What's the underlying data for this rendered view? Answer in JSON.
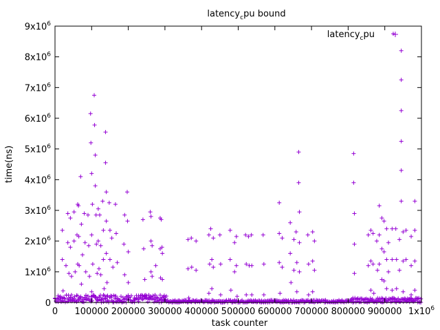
{
  "chart_data": {
    "type": "scatter",
    "title_main": "latency",
    "title_sub": "c",
    "title_tail": "pu bound",
    "xlabel": "task counter",
    "ylabel": "time(ns)",
    "xlim": [
      0,
      1000000
    ],
    "ylim": [
      0,
      9000000
    ],
    "x_ticks": [
      {
        "value": 0,
        "mantissa": "0",
        "exp": ""
      },
      {
        "value": 100000,
        "mantissa": "100000",
        "exp": ""
      },
      {
        "value": 200000,
        "mantissa": "200000",
        "exp": ""
      },
      {
        "value": 300000,
        "mantissa": "300000",
        "exp": ""
      },
      {
        "value": 400000,
        "mantissa": "400000",
        "exp": ""
      },
      {
        "value": 500000,
        "mantissa": "500000",
        "exp": ""
      },
      {
        "value": 600000,
        "mantissa": "600000",
        "exp": ""
      },
      {
        "value": 700000,
        "mantissa": "700000",
        "exp": ""
      },
      {
        "value": 800000,
        "mantissa": "800000",
        "exp": ""
      },
      {
        "value": 900000,
        "mantissa": "900000",
        "exp": ""
      },
      {
        "value": 1000000,
        "mantissa": "1x10",
        "exp": "6"
      }
    ],
    "y_ticks": [
      {
        "value": 0,
        "mantissa": "0",
        "exp": ""
      },
      {
        "value": 1000000,
        "mantissa": "1x10",
        "exp": "6"
      },
      {
        "value": 2000000,
        "mantissa": "2x10",
        "exp": "6"
      },
      {
        "value": 3000000,
        "mantissa": "3x10",
        "exp": "6"
      },
      {
        "value": 4000000,
        "mantissa": "4x10",
        "exp": "6"
      },
      {
        "value": 5000000,
        "mantissa": "5x10",
        "exp": "6"
      },
      {
        "value": 6000000,
        "mantissa": "6x10",
        "exp": "6"
      },
      {
        "value": 7000000,
        "mantissa": "7x10",
        "exp": "6"
      },
      {
        "value": 8000000,
        "mantissa": "8x10",
        "exp": "6"
      },
      {
        "value": 9000000,
        "mantissa": "9x10",
        "exp": "6"
      }
    ],
    "grid": false,
    "legend": {
      "placement": "top-right",
      "label_main": "latency",
      "label_sub": "c",
      "label_tail": "pu"
    },
    "marker": "plus",
    "color": "#9400d3",
    "dense_bands": [
      {
        "x_start": 0,
        "x_end": 305000,
        "y_min": 0,
        "y_max": 250000
      },
      {
        "x_start": 305000,
        "x_end": 810000,
        "y_min": 0,
        "y_max": 80000
      },
      {
        "x_start": 810000,
        "x_end": 1000000,
        "y_min": 0,
        "y_max": 150000
      }
    ],
    "series": [
      {
        "name": "latency_cpu",
        "points": [
          [
            20000,
            2350000
          ],
          [
            20000,
            1400000
          ],
          [
            22000,
            380000
          ],
          [
            30000,
            1200000
          ],
          [
            35000,
            2900000
          ],
          [
            35000,
            1950000
          ],
          [
            38000,
            950000
          ],
          [
            42000,
            2750000
          ],
          [
            42000,
            1800000
          ],
          [
            45000,
            850000
          ],
          [
            52000,
            2950000
          ],
          [
            52000,
            2000000
          ],
          [
            55000,
            1000000
          ],
          [
            62000,
            3200000
          ],
          [
            64000,
            3150000
          ],
          [
            60000,
            2200000
          ],
          [
            65000,
            2150000
          ],
          [
            62000,
            1250000
          ],
          [
            66000,
            1200000
          ],
          [
            70000,
            4100000
          ],
          [
            72000,
            2550000
          ],
          [
            75000,
            1550000
          ],
          [
            72000,
            600000
          ],
          [
            80000,
            2900000
          ],
          [
            82000,
            1950000
          ],
          [
            84000,
            1000000
          ],
          [
            90000,
            2850000
          ],
          [
            92000,
            1850000
          ],
          [
            94000,
            850000
          ],
          [
            97000,
            6150000
          ],
          [
            98000,
            5200000
          ],
          [
            100000,
            4200000
          ],
          [
            102000,
            3200000
          ],
          [
            100000,
            2200000
          ],
          [
            103000,
            1250000
          ],
          [
            100000,
            350000
          ],
          [
            107000,
            6750000
          ],
          [
            108000,
            5780000
          ],
          [
            110000,
            4800000
          ],
          [
            110000,
            3800000
          ],
          [
            112000,
            2850000
          ],
          [
            113000,
            1900000
          ],
          [
            115000,
            950000
          ],
          [
            118000,
            3050000
          ],
          [
            118000,
            2000000
          ],
          [
            120000,
            1100000
          ],
          [
            122000,
            2850000
          ],
          [
            125000,
            1850000
          ],
          [
            125000,
            900000
          ],
          [
            130000,
            3300000
          ],
          [
            132000,
            2350000
          ],
          [
            132000,
            1400000
          ],
          [
            134000,
            450000
          ],
          [
            138000,
            5550000
          ],
          [
            138000,
            4550000
          ],
          [
            140000,
            3600000
          ],
          [
            140000,
            2650000
          ],
          [
            140000,
            1600000
          ],
          [
            142000,
            650000
          ],
          [
            148000,
            3250000
          ],
          [
            150000,
            2350000
          ],
          [
            150000,
            1400000
          ],
          [
            155000,
            2100000
          ],
          [
            158000,
            1150000
          ],
          [
            160000,
            230000
          ],
          [
            165000,
            3200000
          ],
          [
            167000,
            2250000
          ],
          [
            170000,
            1300000
          ],
          [
            190000,
            2850000
          ],
          [
            188000,
            1900000
          ],
          [
            190000,
            900000
          ],
          [
            197000,
            3600000
          ],
          [
            198000,
            2650000
          ],
          [
            200000,
            1650000
          ],
          [
            200000,
            650000
          ],
          [
            240000,
            2700000
          ],
          [
            242000,
            1750000
          ],
          [
            245000,
            750000
          ],
          [
            260000,
            2950000
          ],
          [
            262000,
            2800000
          ],
          [
            262000,
            2000000
          ],
          [
            265000,
            1850000
          ],
          [
            262000,
            1000000
          ],
          [
            265000,
            850000
          ],
          [
            275000,
            1200000
          ],
          [
            287000,
            2750000
          ],
          [
            290000,
            2700000
          ],
          [
            287000,
            1750000
          ],
          [
            292000,
            1800000
          ],
          [
            288000,
            800000
          ],
          [
            293000,
            750000
          ],
          [
            293000,
            1600000
          ],
          [
            363000,
            2050000
          ],
          [
            363000,
            1100000
          ],
          [
            365000,
            150000
          ],
          [
            372000,
            2100000
          ],
          [
            373000,
            1150000
          ],
          [
            385000,
            2000000
          ],
          [
            385000,
            1050000
          ],
          [
            420000,
            2200000
          ],
          [
            422000,
            1250000
          ],
          [
            420000,
            300000
          ],
          [
            425000,
            2400000
          ],
          [
            428000,
            1400000
          ],
          [
            428000,
            450000
          ],
          [
            432000,
            2100000
          ],
          [
            432000,
            1150000
          ],
          [
            450000,
            2200000
          ],
          [
            452000,
            1250000
          ],
          [
            452000,
            250000
          ],
          [
            478000,
            2350000
          ],
          [
            478000,
            1400000
          ],
          [
            480000,
            400000
          ],
          [
            490000,
            1950000
          ],
          [
            490000,
            1000000
          ],
          [
            495000,
            2150000
          ],
          [
            495000,
            1200000
          ],
          [
            497000,
            200000
          ],
          [
            520000,
            2200000
          ],
          [
            522000,
            1250000
          ],
          [
            522000,
            250000
          ],
          [
            528000,
            2150000
          ],
          [
            530000,
            1200000
          ],
          [
            536000,
            2200000
          ],
          [
            537000,
            1200000
          ],
          [
            537000,
            250000
          ],
          [
            568000,
            2200000
          ],
          [
            570000,
            1250000
          ],
          [
            570000,
            250000
          ],
          [
            612000,
            3250000
          ],
          [
            612000,
            2250000
          ],
          [
            612000,
            1300000
          ],
          [
            614000,
            300000
          ],
          [
            620000,
            2100000
          ],
          [
            620000,
            1150000
          ],
          [
            642000,
            2600000
          ],
          [
            642000,
            1600000
          ],
          [
            644000,
            650000
          ],
          [
            652000,
            2050000
          ],
          [
            652000,
            1050000
          ],
          [
            658000,
            2300000
          ],
          [
            660000,
            1300000
          ],
          [
            660000,
            350000
          ],
          [
            665000,
            4900000
          ],
          [
            665000,
            3900000
          ],
          [
            667000,
            2950000
          ],
          [
            667000,
            1950000
          ],
          [
            667000,
            1000000
          ],
          [
            690000,
            2200000
          ],
          [
            692000,
            1250000
          ],
          [
            692000,
            250000
          ],
          [
            703000,
            2300000
          ],
          [
            703000,
            1350000
          ],
          [
            703000,
            350000
          ],
          [
            708000,
            2000000
          ],
          [
            708000,
            1050000
          ],
          [
            815000,
            4850000
          ],
          [
            815000,
            3900000
          ],
          [
            817000,
            2900000
          ],
          [
            817000,
            1900000
          ],
          [
            817000,
            950000
          ],
          [
            855000,
            2200000
          ],
          [
            855000,
            1200000
          ],
          [
            862000,
            2350000
          ],
          [
            862000,
            1350000
          ],
          [
            862000,
            400000
          ],
          [
            868000,
            2250000
          ],
          [
            868000,
            1250000
          ],
          [
            870000,
            300000
          ],
          [
            878000,
            2000000
          ],
          [
            880000,
            1050000
          ],
          [
            885000,
            3150000
          ],
          [
            885000,
            2200000
          ],
          [
            885000,
            1250000
          ],
          [
            892000,
            2750000
          ],
          [
            892000,
            1750000
          ],
          [
            892000,
            750000
          ],
          [
            898000,
            2650000
          ],
          [
            898000,
            1650000
          ],
          [
            898000,
            700000
          ],
          [
            905000,
            2400000
          ],
          [
            905000,
            1400000
          ],
          [
            905000,
            450000
          ],
          [
            910000,
            1950000
          ],
          [
            910000,
            1000000
          ],
          [
            920000,
            2400000
          ],
          [
            920000,
            1400000
          ],
          [
            920000,
            400000
          ],
          [
            923000,
            8750000
          ],
          [
            930000,
            2400000
          ],
          [
            932000,
            1400000
          ],
          [
            932000,
            450000
          ],
          [
            940000,
            2050000
          ],
          [
            940000,
            1050000
          ],
          [
            945000,
            8200000
          ],
          [
            945000,
            7250000
          ],
          [
            945000,
            6250000
          ],
          [
            945000,
            5250000
          ],
          [
            945000,
            4300000
          ],
          [
            945000,
            3300000
          ],
          [
            950000,
            2300000
          ],
          [
            950000,
            1350000
          ],
          [
            950000,
            350000
          ],
          [
            958000,
            2350000
          ],
          [
            958000,
            1400000
          ],
          [
            972000,
            2150000
          ],
          [
            972000,
            1200000
          ],
          [
            972000,
            250000
          ],
          [
            982000,
            3300000
          ],
          [
            982000,
            2350000
          ],
          [
            982000,
            1350000
          ],
          [
            982000,
            400000
          ]
        ]
      }
    ]
  }
}
